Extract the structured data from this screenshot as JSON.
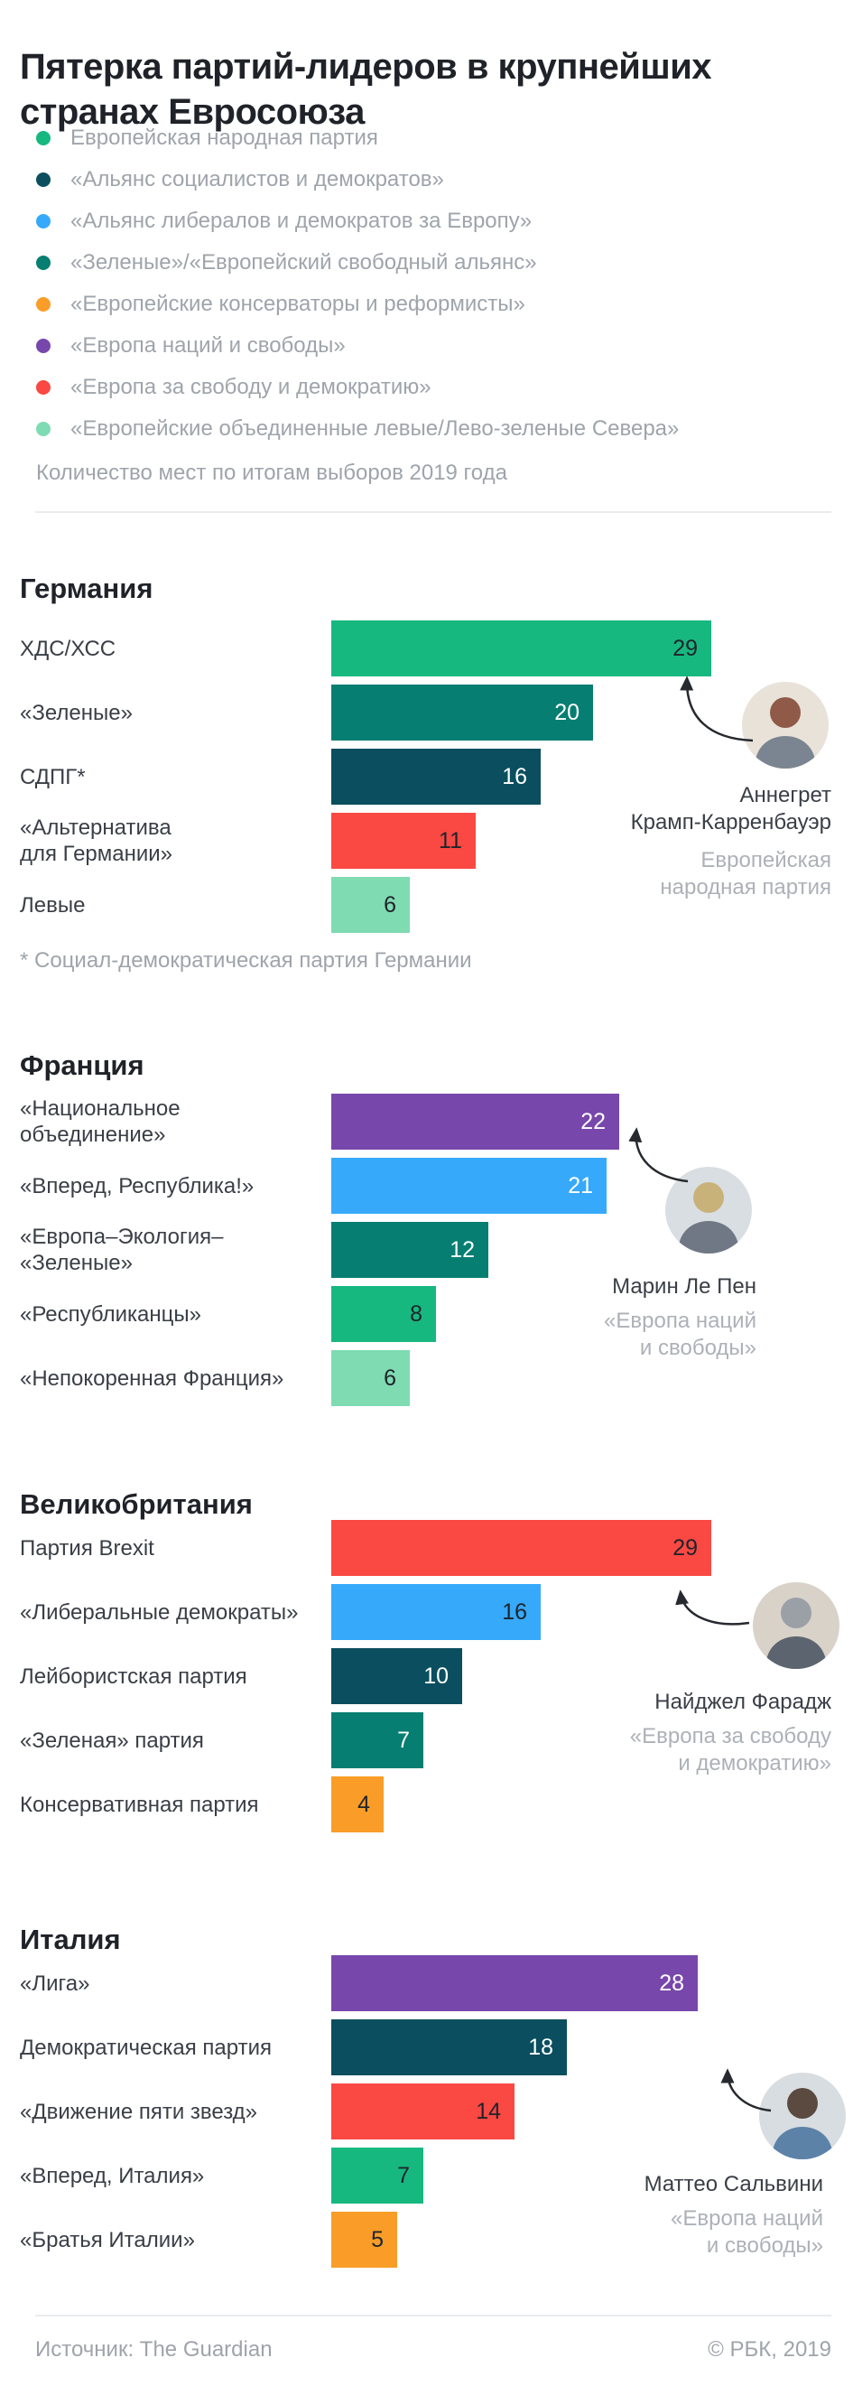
{
  "title": "Пятерка партий-лидеров в крупнейших странах Евросоюза",
  "note": "Количество мест по итогам выборов 2019 года",
  "colors": {
    "epp_green": "#17B880",
    "socialists_darkteal": "#0A4E5F",
    "alde_blue": "#36A9FA",
    "greens_teal": "#077E72",
    "ecr_orange": "#F99D28",
    "enf_purple": "#7847AB",
    "efdd_red": "#FA4843",
    "guengl_mint": "#7FDBB2",
    "dark_text": "#20242B",
    "gray_text": "#9FA4AB"
  },
  "legend": {
    "items": [
      {
        "label": "Европейская народная партия",
        "color": "#17B880"
      },
      {
        "label": "«Альянс социалистов и демократов»",
        "color": "#0A4E5F"
      },
      {
        "label": "«Альянс либералов и демократов за Европу»",
        "color": "#36A9FA"
      },
      {
        "label": "«Зеленые»/«Европейский свободный альянс»",
        "color": "#077E72"
      },
      {
        "label": "«Европейские консерваторы и реформисты»",
        "color": "#F99D28"
      },
      {
        "label": "«Европа наций и свободы»",
        "color": "#7847AB"
      },
      {
        "label": "«Европа за свободу и демократию»",
        "color": "#FA4843"
      },
      {
        "label": "«Европейские объединенные левые/Лево-зеленые Севера»",
        "color": "#7FDBB2"
      }
    ]
  },
  "chart_data": [
    {
      "type": "bar",
      "country": "Германия",
      "categories": [
        "ХДС/ХСС",
        "«Зеленые»",
        "СДПГ*",
        "«Альтернатива\nдля Германии»",
        "Левые"
      ],
      "values": [
        29,
        20,
        16,
        11,
        6
      ],
      "colors": [
        "#17B880",
        "#077E72",
        "#0A4E5F",
        "#FA4843",
        "#7FDBB2"
      ],
      "value_colors": [
        "#20242B",
        "#FFFFFF",
        "#FFFFFF",
        "#20242B",
        "#20242B"
      ],
      "xlim": [
        0,
        29
      ],
      "footnote": "* Социал-демократическая партия Германии",
      "leader": {
        "name": "Аннегрет\nКрамп-Карренбауэр",
        "party": "Европейская\nнародная партия"
      }
    },
    {
      "type": "bar",
      "country": "Франция",
      "categories": [
        "«Национальное\nобъединение»",
        "«Вперед, Республика!»",
        "«Европа–Экология–\n«Зеленые»",
        "«Республиканцы»",
        "«Непокоренная Франция»"
      ],
      "values": [
        22,
        21,
        12,
        8,
        6
      ],
      "colors": [
        "#7847AB",
        "#36A9FA",
        "#077E72",
        "#17B880",
        "#7FDBB2"
      ],
      "value_colors": [
        "#FFFFFF",
        "#FFFFFF",
        "#FFFFFF",
        "#20242B",
        "#20242B"
      ],
      "xlim": [
        0,
        29
      ],
      "leader": {
        "name": "Марин Ле Пен",
        "party": "«Европа наций\nи свободы»"
      }
    },
    {
      "type": "bar",
      "country": "Великобритания",
      "categories": [
        "Партия Brexit",
        "«Либеральные демократы»",
        "Лейбористская партия",
        "«Зеленая» партия",
        "Консервативная партия"
      ],
      "values": [
        29,
        16,
        10,
        7,
        4
      ],
      "colors": [
        "#FA4843",
        "#36A9FA",
        "#0A4E5F",
        "#077E72",
        "#F99D28"
      ],
      "value_colors": [
        "#20242B",
        "#20242B",
        "#FFFFFF",
        "#FFFFFF",
        "#20242B"
      ],
      "xlim": [
        0,
        29
      ],
      "leader": {
        "name": "Найджел Фарадж",
        "party": "«Европа за свободу\nи демократию»"
      }
    },
    {
      "type": "bar",
      "country": "Италия",
      "categories": [
        "«Лига»",
        "Демократическая партия",
        "«Движение пяти звезд»",
        "«Вперед, Италия»",
        "«Братья Италии»"
      ],
      "values": [
        28,
        18,
        14,
        7,
        5
      ],
      "colors": [
        "#7847AB",
        "#0A4E5F",
        "#FA4843",
        "#17B880",
        "#F99D28"
      ],
      "value_colors": [
        "#FFFFFF",
        "#FFFFFF",
        "#20242B",
        "#20242B",
        "#20242B"
      ],
      "xlim": [
        0,
        29
      ],
      "leader": {
        "name": "Маттео Сальвини",
        "party": "«Европа наций\nи свободы»"
      }
    }
  ],
  "footer": {
    "source": "Источник: The Guardian",
    "copyright": "© РБК, 2019"
  }
}
